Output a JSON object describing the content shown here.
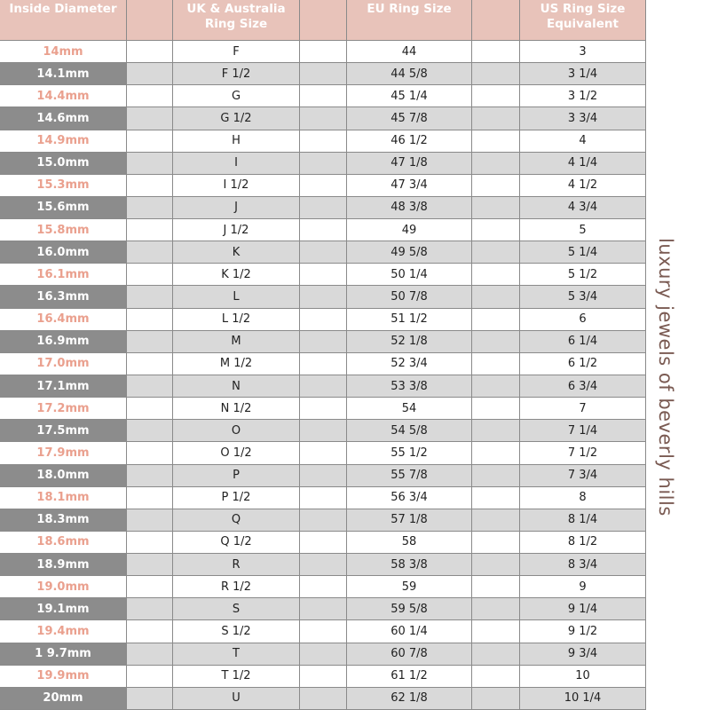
{
  "table": {
    "headers": [
      "Inside Diameter",
      "UK & Australia\nRing Size",
      "EU Ring Size",
      "US Ring Size\nEquivalent"
    ],
    "rows": [
      [
        "14mm",
        "F",
        "44",
        "3"
      ],
      [
        "14.1mm",
        "F 1/2",
        "44 5/8",
        "3 1/4"
      ],
      [
        "14.4mm",
        "G",
        "45 1/4",
        "3 1/2"
      ],
      [
        "14.6mm",
        "G 1/2",
        "45 7/8",
        "3 3/4"
      ],
      [
        "14.9mm",
        "H",
        "46 1/2",
        "4"
      ],
      [
        "15.0mm",
        "I",
        "47 1/8",
        "4 1/4"
      ],
      [
        "15.3mm",
        "I 1/2",
        "47 3/4",
        "4 1/2"
      ],
      [
        "15.6mm",
        "J",
        "48 3/8",
        "4 3/4"
      ],
      [
        "15.8mm",
        "J 1/2",
        "49",
        "5"
      ],
      [
        "16.0mm",
        "K",
        "49 5/8",
        "5 1/4"
      ],
      [
        "16.1mm",
        "K 1/2",
        "50 1/4",
        "5 1/2"
      ],
      [
        "16.3mm",
        "L",
        "50 7/8",
        "5 3/4"
      ],
      [
        "16.4mm",
        "L 1/2",
        "51 1/2",
        "6"
      ],
      [
        "16.9mm",
        "M",
        "52 1/8",
        "6 1/4"
      ],
      [
        "17.0mm",
        "M 1/2",
        "52 3/4",
        "6 1/2"
      ],
      [
        "17.1mm",
        "N",
        "53 3/8",
        "6 3/4"
      ],
      [
        "17.2mm",
        "N 1/2",
        "54",
        "7"
      ],
      [
        "17.5mm",
        "O",
        "54 5/8",
        "7 1/4"
      ],
      [
        "17.9mm",
        "O 1/2",
        "55 1/2",
        "7 1/2"
      ],
      [
        "18.0mm",
        "P",
        "55 7/8",
        "7 3/4"
      ],
      [
        "18.1mm",
        "P 1/2",
        "56 3/4",
        "8"
      ],
      [
        "18.3mm",
        "Q",
        "57 1/8",
        "8 1/4"
      ],
      [
        "18.6mm",
        "Q 1/2",
        "58",
        "8 1/2"
      ],
      [
        "18.9mm",
        "R",
        "58 3/8",
        "8 3/4"
      ],
      [
        "19.0mm",
        "R 1/2",
        "59",
        "9"
      ],
      [
        "19.1mm",
        "S",
        "59 5/8",
        "9 1/4"
      ],
      [
        "19.4mm",
        "S 1/2",
        "60 1/4",
        "9 1/2"
      ],
      [
        "1 9.7mm",
        "T",
        "60 7/8",
        "9 3/4"
      ],
      [
        "19.9mm",
        "T 1/2",
        "61 1/2",
        "10"
      ],
      [
        "20mm",
        "U",
        "62 1/8",
        "10 1/4"
      ]
    ]
  },
  "side_text": "luxury jewels of beverly hills"
}
